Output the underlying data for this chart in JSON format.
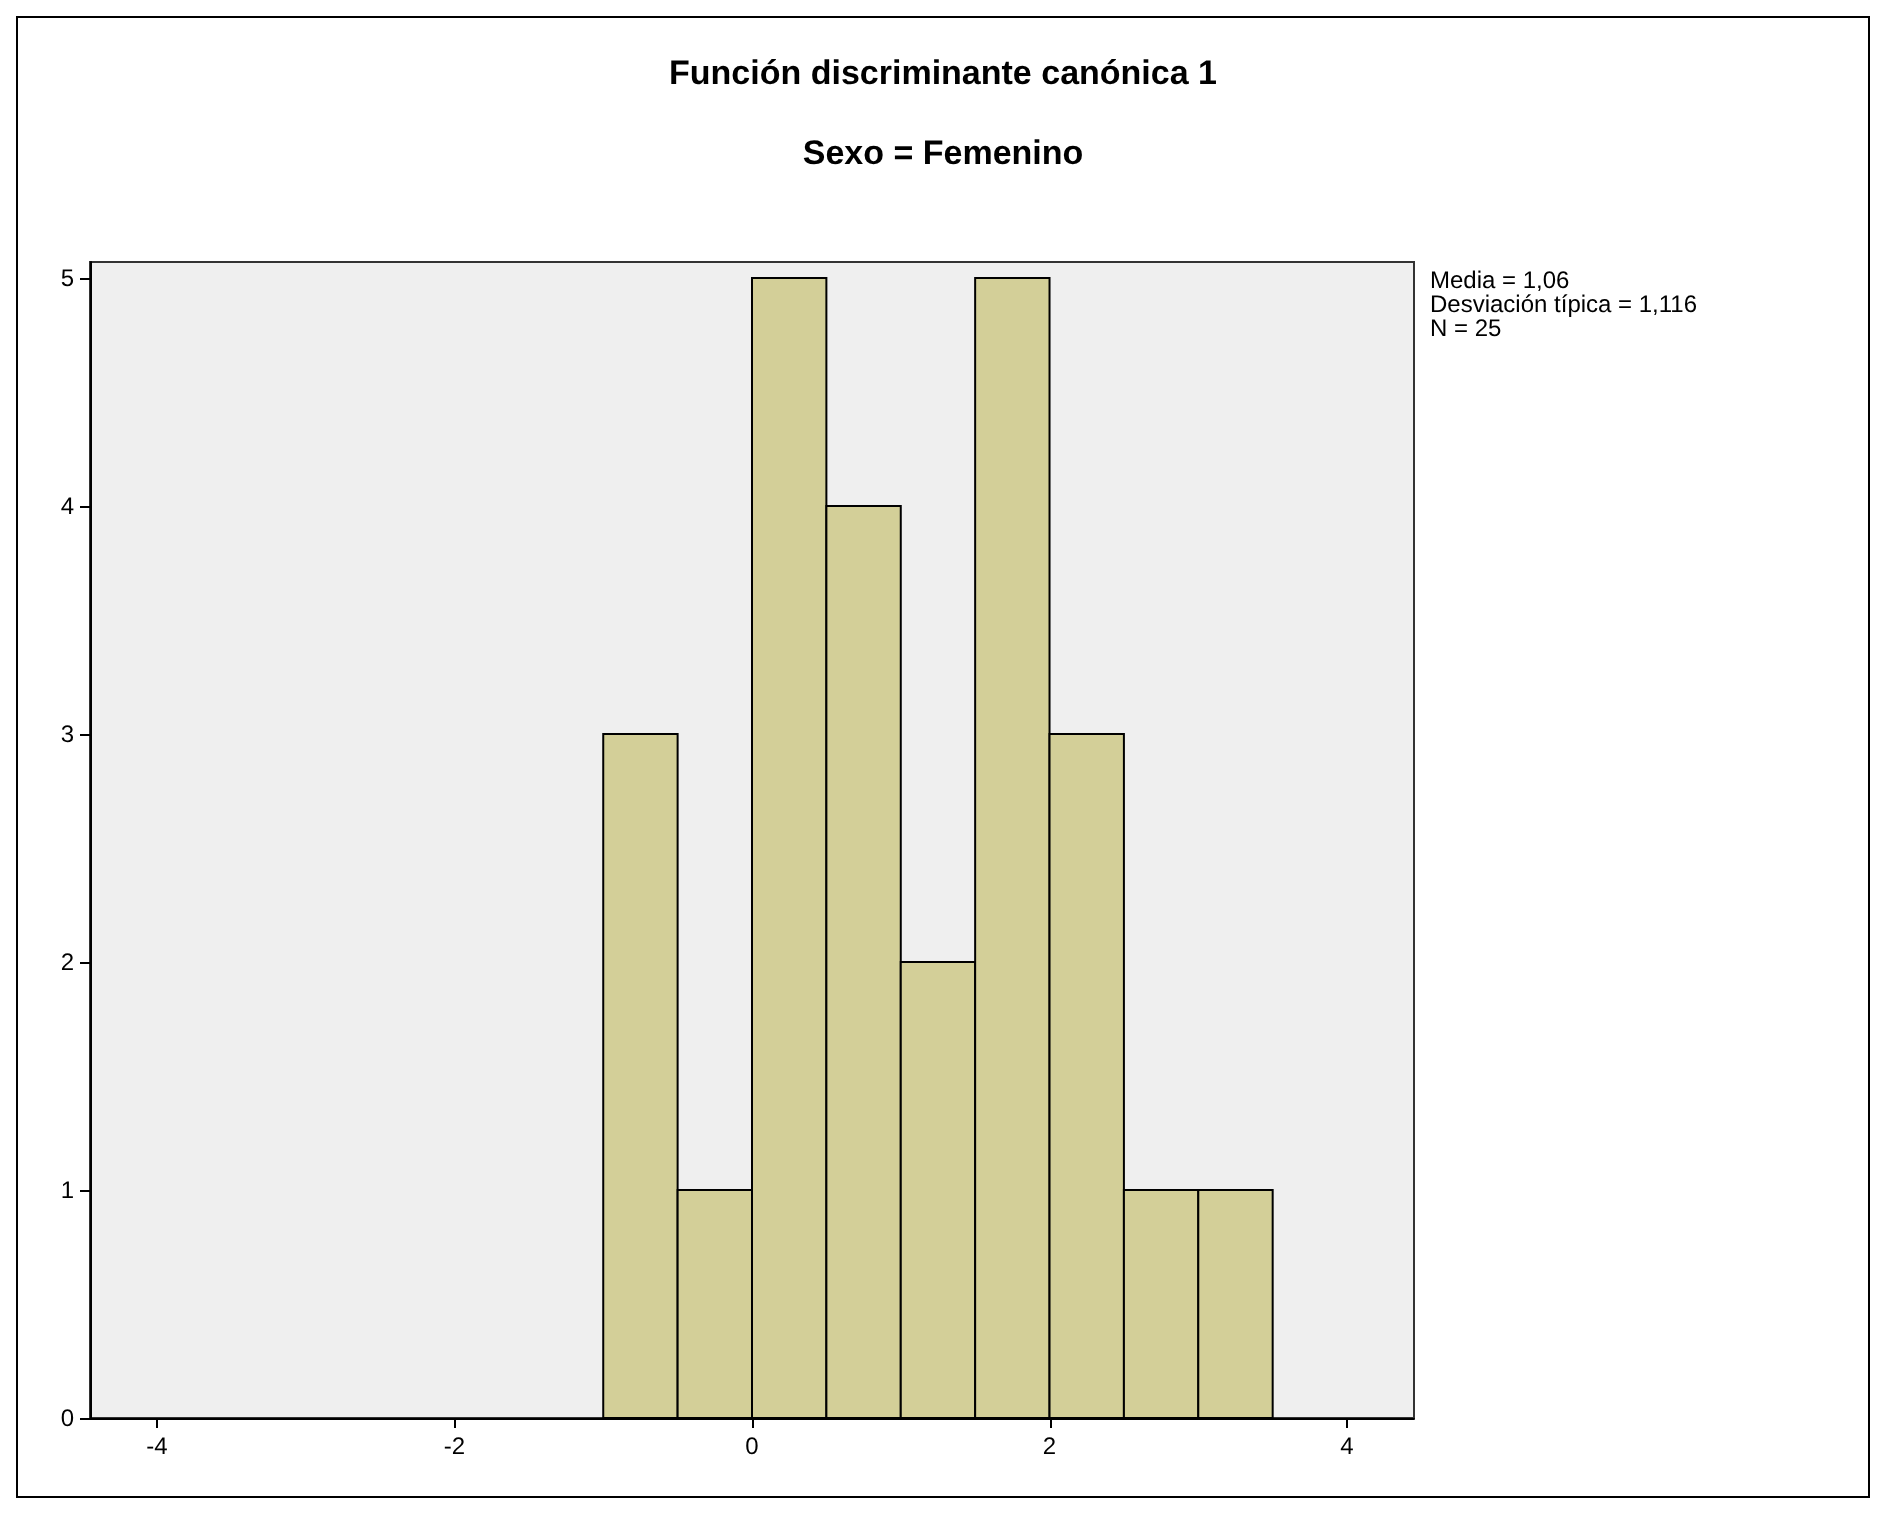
{
  "chart_data": {
    "type": "histogram",
    "title": "Función discriminante canónica 1",
    "subtitle": "Sexo = Femenino",
    "bins": [
      -1,
      -0.5,
      0,
      0.5,
      1,
      1.5,
      2,
      2.5,
      3,
      3.5
    ],
    "values": [
      3,
      1,
      5,
      4,
      2,
      5,
      3,
      1,
      1
    ],
    "color": "#d3cf98",
    "xlim": [
      -4.45,
      4.45
    ],
    "xticks": [
      -4,
      -2,
      0,
      2,
      4
    ],
    "ylim": [
      0,
      5.07
    ],
    "yticks": [
      0,
      1,
      2,
      3,
      4,
      5
    ],
    "annotations": [
      "Media = 1,06",
      "Desviación típica = 1,116",
      "N = 25"
    ],
    "grid": false
  }
}
